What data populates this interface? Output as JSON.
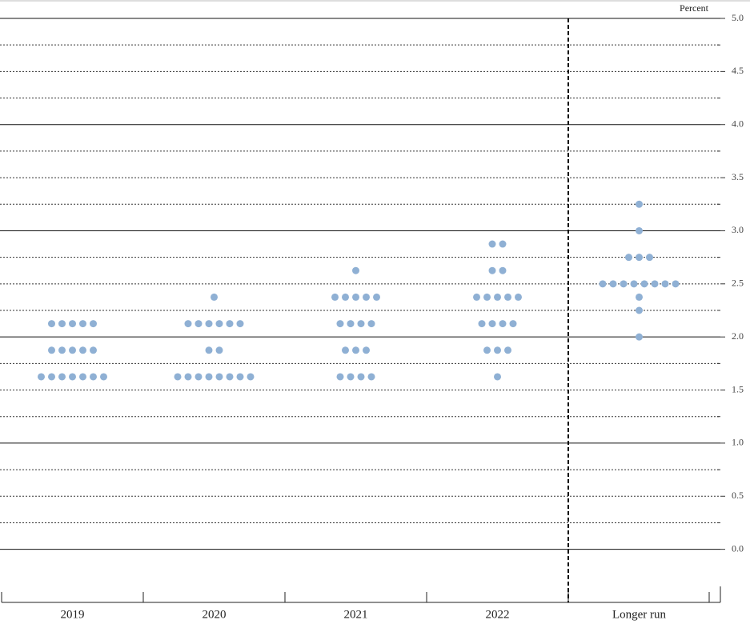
{
  "chart_data": {
    "type": "dot",
    "unit_label": "Percent",
    "categories": [
      "2019",
      "2020",
      "2021",
      "2022",
      "Longer run"
    ],
    "values": [
      [
        2.125,
        2.125,
        2.125,
        2.125,
        2.125,
        1.875,
        1.875,
        1.875,
        1.875,
        1.875,
        1.625,
        1.625,
        1.625,
        1.625,
        1.625,
        1.625,
        1.625
      ],
      [
        2.375,
        2.125,
        2.125,
        2.125,
        2.125,
        2.125,
        2.125,
        1.875,
        1.875,
        1.625,
        1.625,
        1.625,
        1.625,
        1.625,
        1.625,
        1.625,
        1.625
      ],
      [
        2.625,
        2.375,
        2.375,
        2.375,
        2.375,
        2.375,
        2.125,
        2.125,
        2.125,
        2.125,
        1.875,
        1.875,
        1.875,
        1.625,
        1.625,
        1.625,
        1.625
      ],
      [
        2.875,
        2.875,
        2.625,
        2.625,
        2.375,
        2.375,
        2.375,
        2.375,
        2.375,
        2.125,
        2.125,
        2.125,
        2.125,
        1.875,
        1.875,
        1.875,
        1.625
      ],
      [
        3.25,
        3.0,
        2.75,
        2.75,
        2.75,
        2.5,
        2.5,
        2.5,
        2.5,
        2.5,
        2.5,
        2.5,
        2.5,
        2.375,
        2.25,
        2.0
      ]
    ],
    "color": "#8fb0d4",
    "ylim": [
      -0.5,
      5
    ],
    "yticks": [
      {
        "value": 0,
        "label": "0.0"
      },
      {
        "value": 0.5,
        "label": "0.5"
      },
      {
        "value": 1,
        "label": "1.0"
      },
      {
        "value": 1.5,
        "label": "1.5"
      },
      {
        "value": 2,
        "label": "2.0"
      },
      {
        "value": 2.5,
        "label": "2.5"
      },
      {
        "value": 3,
        "label": "3.0"
      },
      {
        "value": 3.5,
        "label": "3.5"
      },
      {
        "value": 4,
        "label": "4.0"
      },
      {
        "value": 4.5,
        "label": "4.5"
      },
      {
        "value": 5,
        "label": "5.0"
      }
    ],
    "minor_yticks": [
      0.25,
      0.75,
      1.25,
      1.75,
      2.25,
      2.75,
      3.25,
      3.75,
      4.25,
      4.75
    ],
    "grid": true
  }
}
